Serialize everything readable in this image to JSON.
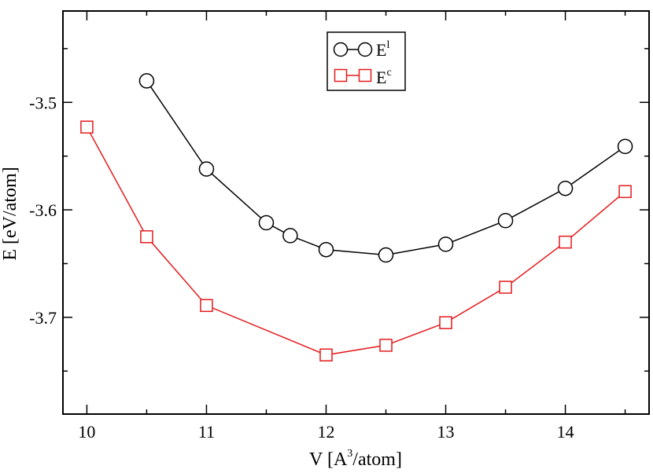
{
  "chart_data": {
    "type": "line",
    "title": "",
    "xlabel": {
      "prefix": "V [A",
      "sup": "3",
      "suffix": "/atom]"
    },
    "ylabel": "E [eV/atom]",
    "xlim": [
      9.8,
      14.7
    ],
    "ylim": [
      -3.79,
      -3.415
    ],
    "xticks": [
      10,
      11,
      12,
      13,
      14
    ],
    "xtick_labels": [
      "10",
      "11",
      "12",
      "13",
      "14"
    ],
    "yticks": [
      -3.5,
      -3.6,
      -3.7
    ],
    "ytick_labels": [
      "-3.5",
      "-3.6",
      "-3.7"
    ],
    "x_minor_step": 0.5,
    "y_minor_step": 0.05,
    "grid": false,
    "legend_position": "top-center",
    "series": [
      {
        "name": "E^l",
        "base": "E",
        "sup": "l",
        "marker": "circle",
        "color": "#000000",
        "x": [
          10.5,
          11.0,
          11.5,
          11.7,
          12.0,
          12.5,
          13.0,
          13.5,
          14.0,
          14.5
        ],
        "y": [
          -3.48,
          -3.562,
          -3.612,
          -3.624,
          -3.637,
          -3.642,
          -3.632,
          -3.61,
          -3.58,
          -3.541
        ]
      },
      {
        "name": "E^c",
        "base": "E",
        "sup": "c",
        "marker": "square",
        "color": "#e41a1c",
        "x": [
          10.0,
          10.5,
          11.0,
          12.0,
          12.5,
          13.0,
          13.5,
          14.0,
          14.5
        ],
        "y": [
          -3.523,
          -3.625,
          -3.689,
          -3.735,
          -3.726,
          -3.705,
          -3.672,
          -3.63,
          -3.583
        ]
      }
    ]
  }
}
